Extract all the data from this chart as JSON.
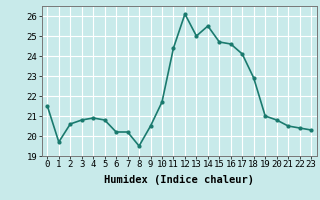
{
  "x": [
    0,
    1,
    2,
    3,
    4,
    5,
    6,
    7,
    8,
    9,
    10,
    11,
    12,
    13,
    14,
    15,
    16,
    17,
    18,
    19,
    20,
    21,
    22,
    23
  ],
  "y": [
    21.5,
    19.7,
    20.6,
    20.8,
    20.9,
    20.8,
    20.2,
    20.2,
    19.5,
    20.5,
    21.7,
    24.4,
    26.1,
    25.0,
    25.5,
    24.7,
    24.6,
    24.1,
    22.9,
    21.0,
    20.8,
    20.5,
    20.4,
    20.3
  ],
  "line_color": "#1a7a6e",
  "marker": "o",
  "marker_size": 2.0,
  "bg_color": "#c8eaea",
  "grid_color": "#ffffff",
  "xlabel": "Humidex (Indice chaleur)",
  "ylim": [
    19,
    26.5
  ],
  "xlim": [
    -0.5,
    23.5
  ],
  "yticks": [
    19,
    20,
    21,
    22,
    23,
    24,
    25,
    26
  ],
  "xticks": [
    0,
    1,
    2,
    3,
    4,
    5,
    6,
    7,
    8,
    9,
    10,
    11,
    12,
    13,
    14,
    15,
    16,
    17,
    18,
    19,
    20,
    21,
    22,
    23
  ],
  "tick_fontsize": 6.5,
  "xlabel_fontsize": 7.5,
  "linewidth": 1.2
}
